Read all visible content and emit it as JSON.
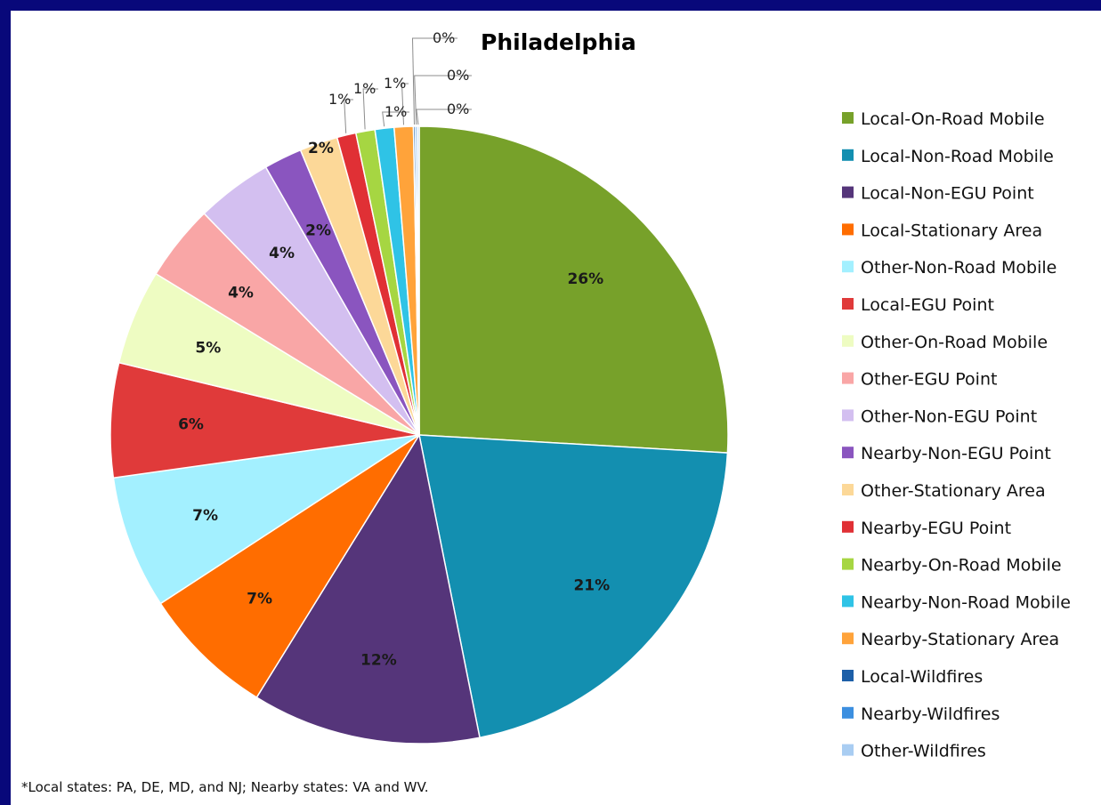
{
  "chart_data": {
    "type": "pie",
    "title": "Philadelphia",
    "footnote": "*Local states: PA, DE, MD, and NJ; Nearby states: VA and WV.",
    "legend_position": "right",
    "series": [
      {
        "name": "Local-On-Road Mobile",
        "value": 26,
        "label": "26%",
        "color": "#77a12a"
      },
      {
        "name": "Local-Non-Road Mobile",
        "value": 21,
        "label": "21%",
        "color": "#138fb0"
      },
      {
        "name": "Local-Non-EGU Point",
        "value": 12,
        "label": "12%",
        "color": "#55357a"
      },
      {
        "name": "Local-Stationary Area",
        "value": 7,
        "label": "7%",
        "color": "#ff6d00"
      },
      {
        "name": "Other-Non-Road Mobile",
        "value": 7,
        "label": "7%",
        "color": "#a3f0ff"
      },
      {
        "name": "Local-EGU Point",
        "value": 6,
        "label": "6%",
        "color": "#e03a3a"
      },
      {
        "name": "Other-On-Road Mobile",
        "value": 5,
        "label": "5%",
        "color": "#eefcc2"
      },
      {
        "name": "Other-EGU Point",
        "value": 4,
        "label": "4%",
        "color": "#f9a6a6"
      },
      {
        "name": "Other-Non-EGU Point",
        "value": 4,
        "label": "4%",
        "color": "#d3bff0"
      },
      {
        "name": "Nearby-Non-EGU Point",
        "value": 2,
        "label": "2%",
        "color": "#8a55bf"
      },
      {
        "name": "Other-Stationary Area",
        "value": 2,
        "label": "2%",
        "color": "#fcd898"
      },
      {
        "name": "Nearby-EGU Point",
        "value": 1,
        "label": "1%",
        "color": "#e03035"
      },
      {
        "name": "Nearby-On-Road Mobile",
        "value": 1,
        "label": "1%",
        "color": "#a6d642"
      },
      {
        "name": "Nearby-Non-Road Mobile",
        "value": 1,
        "label": "1%",
        "color": "#2fc3e6"
      },
      {
        "name": "Nearby-Stationary Area",
        "value": 1,
        "label": "1%",
        "color": "#ffa33a"
      },
      {
        "name": "Local-Wildfires",
        "value": 0.1,
        "label": "0%",
        "color": "#1d5fa8"
      },
      {
        "name": "Nearby-Wildfires",
        "value": 0.1,
        "label": "0%",
        "color": "#3c8fe0"
      },
      {
        "name": "Other-Wildfires",
        "value": 0.1,
        "label": "0%",
        "color": "#a9cdf2"
      }
    ]
  }
}
